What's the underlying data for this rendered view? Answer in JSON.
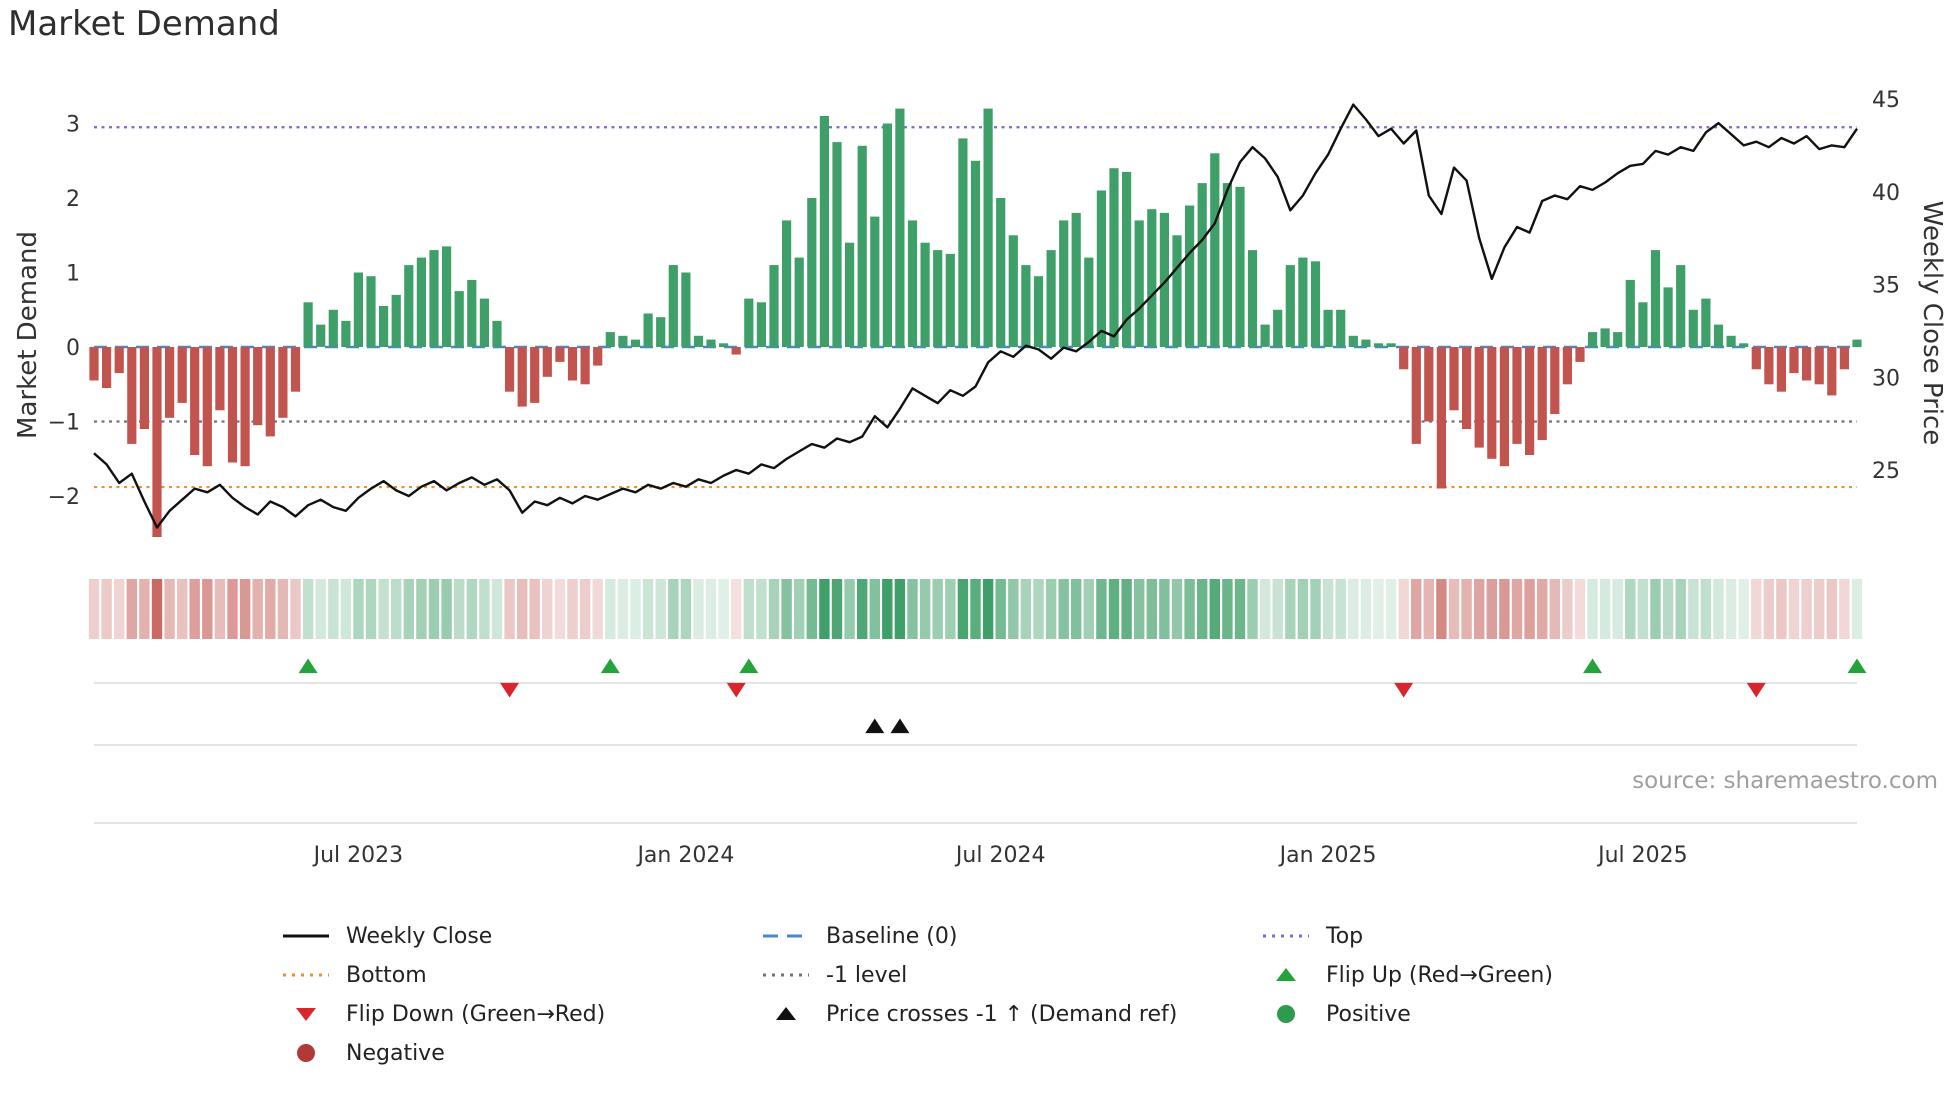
{
  "title": "Market Demand",
  "axis_labels": {
    "left": "Market Demand",
    "right": "Weekly Close Price"
  },
  "source": "source: sharemaestro.com",
  "legend": {
    "weekly_close": "Weekly Close",
    "baseline": "Baseline (0)",
    "top": "Top",
    "bottom": "Bottom",
    "minus1": "-1 level",
    "flip_up": "Flip Up (Red→Green)",
    "flip_down": "Flip Down (Green→Red)",
    "price_cross": "Price crosses -1 ↑ (Demand ref)",
    "positive": "Positive",
    "negative": "Negative"
  },
  "chart_data": {
    "type": "bar+line",
    "x_unit": "week",
    "title": "Market Demand",
    "x_ticks": [
      {
        "index": 21,
        "label": "Jul 2023"
      },
      {
        "index": 47,
        "label": "Jan 2024"
      },
      {
        "index": 72,
        "label": "Jul 2024"
      },
      {
        "index": 98,
        "label": "Jan 2025"
      },
      {
        "index": 123,
        "label": "Jul 2025"
      }
    ],
    "y_left": {
      "label": "Market Demand",
      "range": [
        -2.74,
        3.33
      ],
      "ticks": [
        {
          "value": 3,
          "label": "3"
        },
        {
          "value": 2,
          "label": "2"
        },
        {
          "value": 1,
          "label": "1"
        },
        {
          "value": 0,
          "label": "0"
        },
        {
          "value": -1,
          "label": "−1"
        },
        {
          "value": -2,
          "label": "−2"
        }
      ]
    },
    "y_right": {
      "label": "Weekly Close Price",
      "range": [
        20.6,
        45.0
      ],
      "ticks": [
        {
          "value": 45,
          "label": "45"
        },
        {
          "value": 40,
          "label": "40"
        },
        {
          "value": 35,
          "label": "35"
        },
        {
          "value": 30,
          "label": "30"
        },
        {
          "value": 25,
          "label": "25"
        }
      ]
    },
    "reference_lines": {
      "top": 2.95,
      "baseline": 0,
      "minus1": -1,
      "bottom": -1.88
    },
    "series": [
      {
        "name": "Market Demand",
        "type": "bar",
        "axis": "left",
        "values": [
          -0.45,
          -0.55,
          -0.35,
          -1.3,
          -1.1,
          -2.55,
          -0.95,
          -0.75,
          -1.45,
          -1.6,
          -0.85,
          -1.55,
          -1.6,
          -1.05,
          -1.2,
          -0.95,
          -0.6,
          0.6,
          0.3,
          0.5,
          0.35,
          1.0,
          0.95,
          0.55,
          0.7,
          1.1,
          1.2,
          1.3,
          1.35,
          0.75,
          0.9,
          0.65,
          0.35,
          -0.6,
          -0.8,
          -0.75,
          -0.4,
          -0.2,
          -0.45,
          -0.5,
          -0.25,
          0.2,
          0.15,
          0.1,
          0.45,
          0.4,
          1.1,
          1.0,
          0.15,
          0.1,
          0.05,
          -0.1,
          0.65,
          0.6,
          1.1,
          1.7,
          1.2,
          2.0,
          3.1,
          2.75,
          1.4,
          2.7,
          1.75,
          3.0,
          3.2,
          1.7,
          1.4,
          1.3,
          1.25,
          2.8,
          2.5,
          3.2,
          2.0,
          1.5,
          1.1,
          0.95,
          1.3,
          1.7,
          1.8,
          1.2,
          2.1,
          2.4,
          2.35,
          1.7,
          1.85,
          1.8,
          1.5,
          1.9,
          2.2,
          2.6,
          2.2,
          2.15,
          1.3,
          0.3,
          0.5,
          1.1,
          1.2,
          1.15,
          0.5,
          0.5,
          0.15,
          0.1,
          0.05,
          0.05,
          -0.3,
          -1.3,
          -1.0,
          -1.9,
          -0.85,
          -1.1,
          -1.35,
          -1.5,
          -1.6,
          -1.3,
          -1.45,
          -1.25,
          -0.9,
          -0.5,
          -0.2,
          0.2,
          0.25,
          0.2,
          0.9,
          0.6,
          1.3,
          0.8,
          1.1,
          0.5,
          0.65,
          0.3,
          0.15,
          0.05,
          -0.3,
          -0.5,
          -0.6,
          -0.35,
          -0.45,
          -0.5,
          -0.65,
          -0.3,
          0.1
        ]
      },
      {
        "name": "Weekly Close",
        "type": "line",
        "axis": "right",
        "values": [
          25.9,
          25.3,
          24.3,
          24.8,
          23.3,
          21.9,
          22.8,
          23.4,
          24.0,
          23.8,
          24.2,
          23.5,
          23.0,
          22.6,
          23.3,
          23.0,
          22.5,
          23.1,
          23.4,
          23.0,
          22.8,
          23.5,
          24.0,
          24.4,
          23.9,
          23.6,
          24.1,
          24.4,
          23.9,
          24.3,
          24.6,
          24.2,
          24.5,
          23.9,
          22.7,
          23.3,
          23.1,
          23.5,
          23.2,
          23.6,
          23.4,
          23.7,
          24.0,
          23.8,
          24.2,
          24.0,
          24.3,
          24.1,
          24.5,
          24.3,
          24.7,
          25.0,
          24.8,
          25.3,
          25.1,
          25.6,
          26.0,
          26.4,
          26.2,
          26.7,
          26.5,
          26.8,
          27.9,
          27.3,
          28.3,
          29.4,
          29.0,
          28.6,
          29.3,
          29.0,
          29.5,
          30.8,
          31.4,
          31.1,
          31.7,
          31.5,
          31.0,
          31.6,
          31.4,
          31.9,
          32.5,
          32.2,
          33.1,
          33.7,
          34.4,
          35.1,
          35.9,
          36.7,
          37.4,
          38.3,
          40.1,
          41.6,
          42.4,
          41.8,
          40.8,
          39.0,
          39.8,
          41.0,
          42.0,
          43.4,
          44.7,
          43.9,
          43.0,
          43.4,
          42.6,
          43.3,
          39.8,
          38.8,
          41.3,
          40.6,
          37.5,
          35.3,
          37.0,
          38.1,
          37.8,
          39.5,
          39.8,
          39.6,
          40.3,
          40.1,
          40.5,
          41.0,
          41.4,
          41.5,
          42.2,
          42.0,
          42.4,
          42.2,
          43.2,
          43.7,
          43.1,
          42.5,
          42.7,
          42.4,
          42.9,
          42.6,
          43.0,
          42.3,
          42.5,
          42.4,
          43.4
        ]
      }
    ],
    "markers": {
      "flip_up_indices": [
        17,
        41,
        52,
        119,
        140
      ],
      "flip_down_indices": [
        33,
        51,
        104,
        132
      ],
      "price_cross_indices": [
        62,
        64
      ]
    },
    "colors": {
      "positive": "#3f9f68",
      "negative": "#c1544e",
      "line": "#111111",
      "baseline": "#4a89c8",
      "top": "#6f6fd8",
      "bottom": "#e8912d",
      "minus1": "#70707f",
      "flip_up": "#23a33a",
      "flip_down": "#d8262c",
      "price_cross": "#111111",
      "positive_marker": "#2e9a4d",
      "negative_marker": "#b03a35"
    }
  }
}
